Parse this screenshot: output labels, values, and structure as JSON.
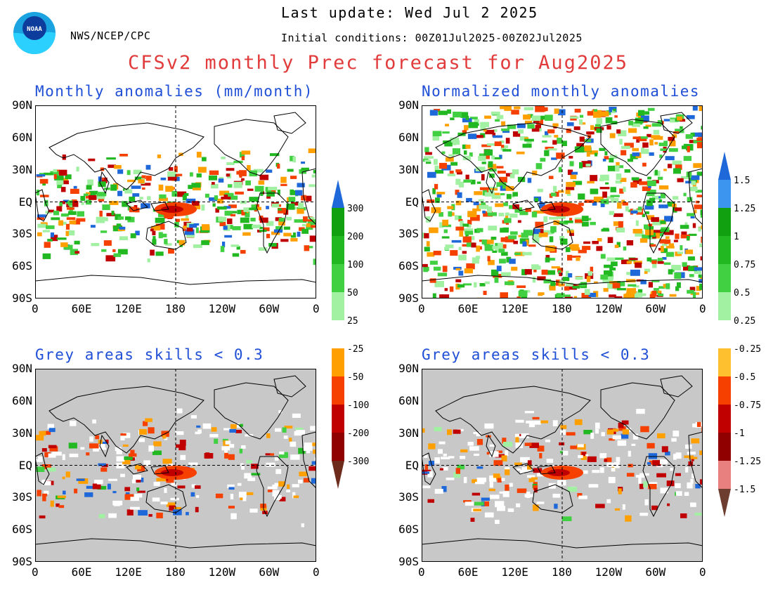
{
  "header": {
    "agency": "NWS/NCEP/CPC",
    "last_update": "Last update: Wed Jul 2 2025",
    "initial_conditions": "Initial conditions: 00Z01Jul2025-00Z02Jul2025",
    "title": "CFSv2 monthly Prec forecast for Aug2025",
    "logo_text": "NOAA"
  },
  "panels": [
    {
      "id": "tl",
      "title": "Monthly anomalies (mm/month)",
      "background": "white"
    },
    {
      "id": "tr",
      "title": "Normalized monthly anomalies",
      "background": "noisy"
    },
    {
      "id": "bl",
      "title": "Grey areas skills < 0.3",
      "background": "grey"
    },
    {
      "id": "br",
      "title": "Grey areas skills < 0.3",
      "background": "grey"
    }
  ],
  "axes": {
    "lat_labels": [
      "90N",
      "60N",
      "30N",
      "EQ",
      "30S",
      "60S",
      "90S"
    ],
    "lon_labels": [
      "0",
      "60E",
      "120E",
      "180",
      "120W",
      "60W",
      "0"
    ]
  },
  "colorbars": [
    {
      "id": "abs",
      "labels": [
        "300",
        "200",
        "100",
        "50",
        "25",
        "-25",
        "-50",
        "-100",
        "-200",
        "-300"
      ],
      "colors": [
        "#1f68d9",
        "#10a010",
        "#21b821",
        "#41d041",
        "#a2f0a2",
        "#ffffff",
        "#ffa000",
        "#f54000",
        "#c00000",
        "#910000",
        "#6d2b1b"
      ]
    },
    {
      "id": "norm",
      "labels": [
        "1.5",
        "1.25",
        "1",
        "0.75",
        "0.5",
        "0.25",
        "-0.25",
        "-0.5",
        "-0.75",
        "-1",
        "-1.25",
        "-1.5"
      ],
      "colors": [
        "#1f68d9",
        "#3c96f0",
        "#10a010",
        "#21b821",
        "#41d041",
        "#a2f0a2",
        "#ffffff",
        "#ffc030",
        "#f54000",
        "#c00000",
        "#910000",
        "#e88080",
        "#6d3e30"
      ]
    }
  ],
  "colors": {
    "grey_mask": "#c8c8c8",
    "title": "#e23b3b",
    "panel_title": "#1f4fd6"
  }
}
